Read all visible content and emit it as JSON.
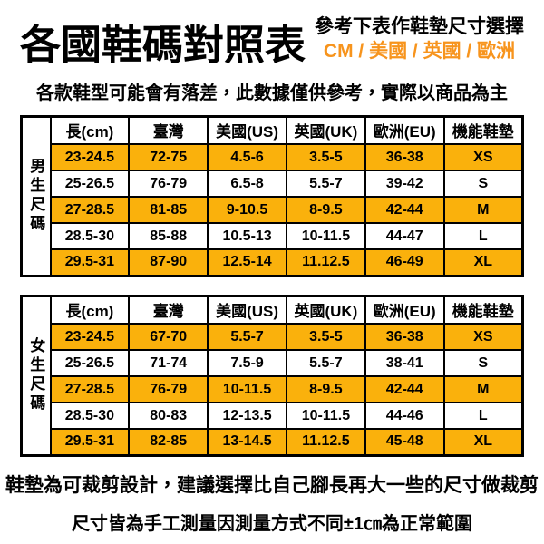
{
  "colors": {
    "accent_orange": "#F7941D",
    "row_highlight": "#FAB10C",
    "text": "#000000",
    "border": "#000000",
    "background": "#FFFFFF"
  },
  "header": {
    "title": "各國鞋碼對照表",
    "instruction": "參考下表作鞋墊尺寸選擇",
    "units": "CM / 美國 / 英國 / 歐洲",
    "note": "各款鞋型可能會有落差，此數據僅供參考，實際以商品為主"
  },
  "tables": [
    {
      "id": "men",
      "side_label": "男生尺碼",
      "columns": [
        "長(cm)",
        "臺灣",
        "美國(US)",
        "英國(UK)",
        "歐洲(EU)",
        "機能鞋墊"
      ],
      "rows": [
        {
          "highlight": true,
          "cells": [
            "23-24.5",
            "72-75",
            "4.5-6",
            "3.5-5",
            "36-38",
            "XS"
          ]
        },
        {
          "highlight": false,
          "cells": [
            "25-26.5",
            "76-79",
            "6.5-8",
            "5.5-7",
            "39-42",
            "S"
          ]
        },
        {
          "highlight": true,
          "cells": [
            "27-28.5",
            "81-85",
            "9-10.5",
            "8-9.5",
            "42-44",
            "M"
          ]
        },
        {
          "highlight": false,
          "cells": [
            "28.5-30",
            "85-88",
            "10.5-13",
            "10-11.5",
            "44-47",
            "L"
          ]
        },
        {
          "highlight": true,
          "cells": [
            "29.5-31",
            "87-90",
            "12.5-14",
            "11.12.5",
            "46-49",
            "XL"
          ]
        }
      ]
    },
    {
      "id": "women",
      "side_label": "女生尺碼",
      "columns": [
        "長(cm)",
        "臺灣",
        "美國(US)",
        "英國(UK)",
        "歐洲(EU)",
        "機能鞋墊"
      ],
      "rows": [
        {
          "highlight": true,
          "cells": [
            "23-24.5",
            "67-70",
            "5.5-7",
            "3.5-5",
            "36-38",
            "XS"
          ]
        },
        {
          "highlight": false,
          "cells": [
            "25-26.5",
            "71-74",
            "7.5-9",
            "5.5-7",
            "38-41",
            "S"
          ]
        },
        {
          "highlight": true,
          "cells": [
            "27-28.5",
            "76-79",
            "10-11.5",
            "8-9.5",
            "42-44",
            "M"
          ]
        },
        {
          "highlight": false,
          "cells": [
            "28.5-30",
            "80-83",
            "12-13.5",
            "10-11.5",
            "44-46",
            "L"
          ]
        },
        {
          "highlight": true,
          "cells": [
            "29.5-31",
            "82-85",
            "13-14.5",
            "11.12.5",
            "45-48",
            "XL"
          ]
        }
      ]
    }
  ],
  "footer": {
    "line1": "鞋墊為可裁剪設計，建議選擇比自己腳長再大一些的尺寸做裁剪",
    "line2": "尺寸皆為手工測量因測量方式不同±1㎝為正常範圍"
  },
  "chart_data": [
    {
      "type": "table",
      "title": "男生尺碼",
      "columns": [
        "長(cm)",
        "臺灣",
        "美國(US)",
        "英國(UK)",
        "歐洲(EU)",
        "機能鞋墊"
      ],
      "rows": [
        [
          "23-24.5",
          "72-75",
          "4.5-6",
          "3.5-5",
          "36-38",
          "XS"
        ],
        [
          "25-26.5",
          "76-79",
          "6.5-8",
          "5.5-7",
          "39-42",
          "S"
        ],
        [
          "27-28.5",
          "81-85",
          "9-10.5",
          "8-9.5",
          "42-44",
          "M"
        ],
        [
          "28.5-30",
          "85-88",
          "10.5-13",
          "10-11.5",
          "44-47",
          "L"
        ],
        [
          "29.5-31",
          "87-90",
          "12.5-14",
          "11.12.5",
          "46-49",
          "XL"
        ]
      ]
    },
    {
      "type": "table",
      "title": "女生尺碼",
      "columns": [
        "長(cm)",
        "臺灣",
        "美國(US)",
        "英國(UK)",
        "歐洲(EU)",
        "機能鞋墊"
      ],
      "rows": [
        [
          "23-24.5",
          "67-70",
          "5.5-7",
          "3.5-5",
          "36-38",
          "XS"
        ],
        [
          "25-26.5",
          "71-74",
          "7.5-9",
          "5.5-7",
          "38-41",
          "S"
        ],
        [
          "27-28.5",
          "76-79",
          "10-11.5",
          "8-9.5",
          "42-44",
          "M"
        ],
        [
          "28.5-30",
          "80-83",
          "12-13.5",
          "10-11.5",
          "44-46",
          "L"
        ],
        [
          "29.5-31",
          "82-85",
          "13-14.5",
          "11.12.5",
          "45-48",
          "XL"
        ]
      ]
    }
  ]
}
